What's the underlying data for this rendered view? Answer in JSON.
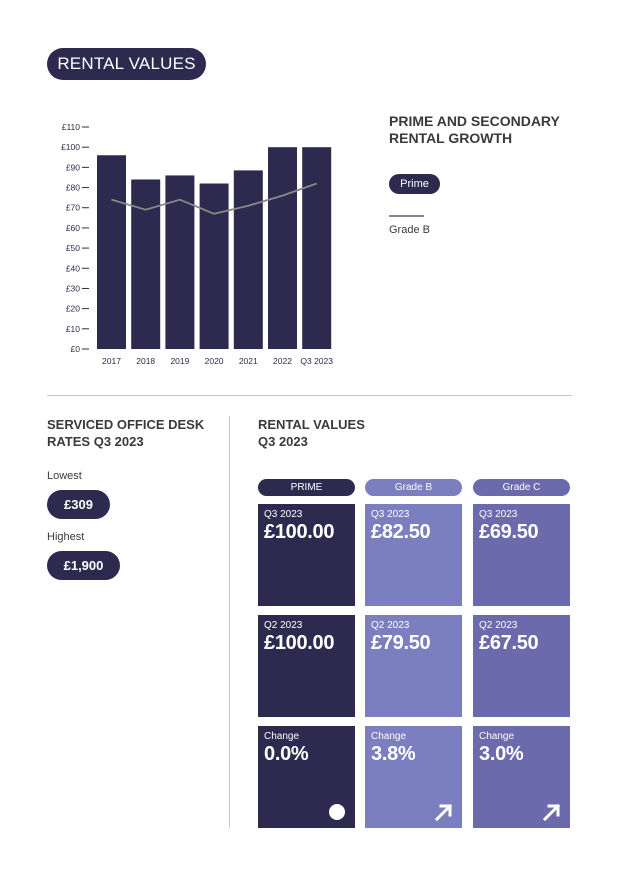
{
  "header": {
    "title": "RENTAL VALUES"
  },
  "chart_data": {
    "type": "bar",
    "categories": [
      "2017",
      "2018",
      "2019",
      "2020",
      "2021",
      "2022",
      "Q3 2023"
    ],
    "series": [
      {
        "name": "Prime",
        "type": "bar",
        "values": [
          96,
          84,
          86,
          82,
          88.5,
          100,
          100
        ]
      },
      {
        "name": "Grade B",
        "type": "line",
        "values": [
          74,
          69,
          74,
          67,
          71,
          76,
          82
        ]
      }
    ],
    "y_ticks": [
      "£0",
      "£10",
      "£20",
      "£30",
      "£40",
      "£50",
      "£60",
      "£70",
      "£80",
      "£90",
      "£100",
      "£110"
    ],
    "ylim": [
      0,
      110
    ],
    "grid": false,
    "colors": {
      "bar": "#2e2a4f",
      "line": "#888888"
    }
  },
  "legend": {
    "title_line1": "PRIME AND SECONDARY",
    "title_line2": "RENTAL GROWTH",
    "prime_label": "Prime",
    "gradeb_label": "Grade B"
  },
  "desk_rates": {
    "title_line1": "SERVICED OFFICE DESK",
    "title_line2": "RATES Q3 2023",
    "lowest_label": "Lowest",
    "lowest_value": "£309",
    "highest_label": "Highest",
    "highest_value": "£1,900"
  },
  "rental_table": {
    "title_line1": "RENTAL VALUES",
    "title_line2": "Q3 2023",
    "columns": [
      {
        "header": "PRIME",
        "q3_label": "Q3 2023",
        "q3_value": "£100.00",
        "q2_label": "Q2 2023",
        "q2_value": "£100.00",
        "change_label": "Change",
        "change_value": "0.0%",
        "icon": "dot-icon"
      },
      {
        "header": "Grade B",
        "q3_label": "Q3 2023",
        "q3_value": "£82.50",
        "q2_label": "Q2 2023",
        "q2_value": "£79.50",
        "change_label": "Change",
        "change_value": "3.8%",
        "icon": "arrow-up-right-icon"
      },
      {
        "header": "Grade C",
        "q3_label": "Q3 2023",
        "q3_value": "£69.50",
        "q2_label": "Q2 2023",
        "q2_value": "£67.50",
        "change_label": "Change",
        "change_value": "3.0%",
        "icon": "arrow-up-right-icon"
      }
    ]
  },
  "colors": {
    "navy": "#2e2a4f",
    "grade_b": "#7b7fbf",
    "grade_c": "#6b6aad"
  }
}
